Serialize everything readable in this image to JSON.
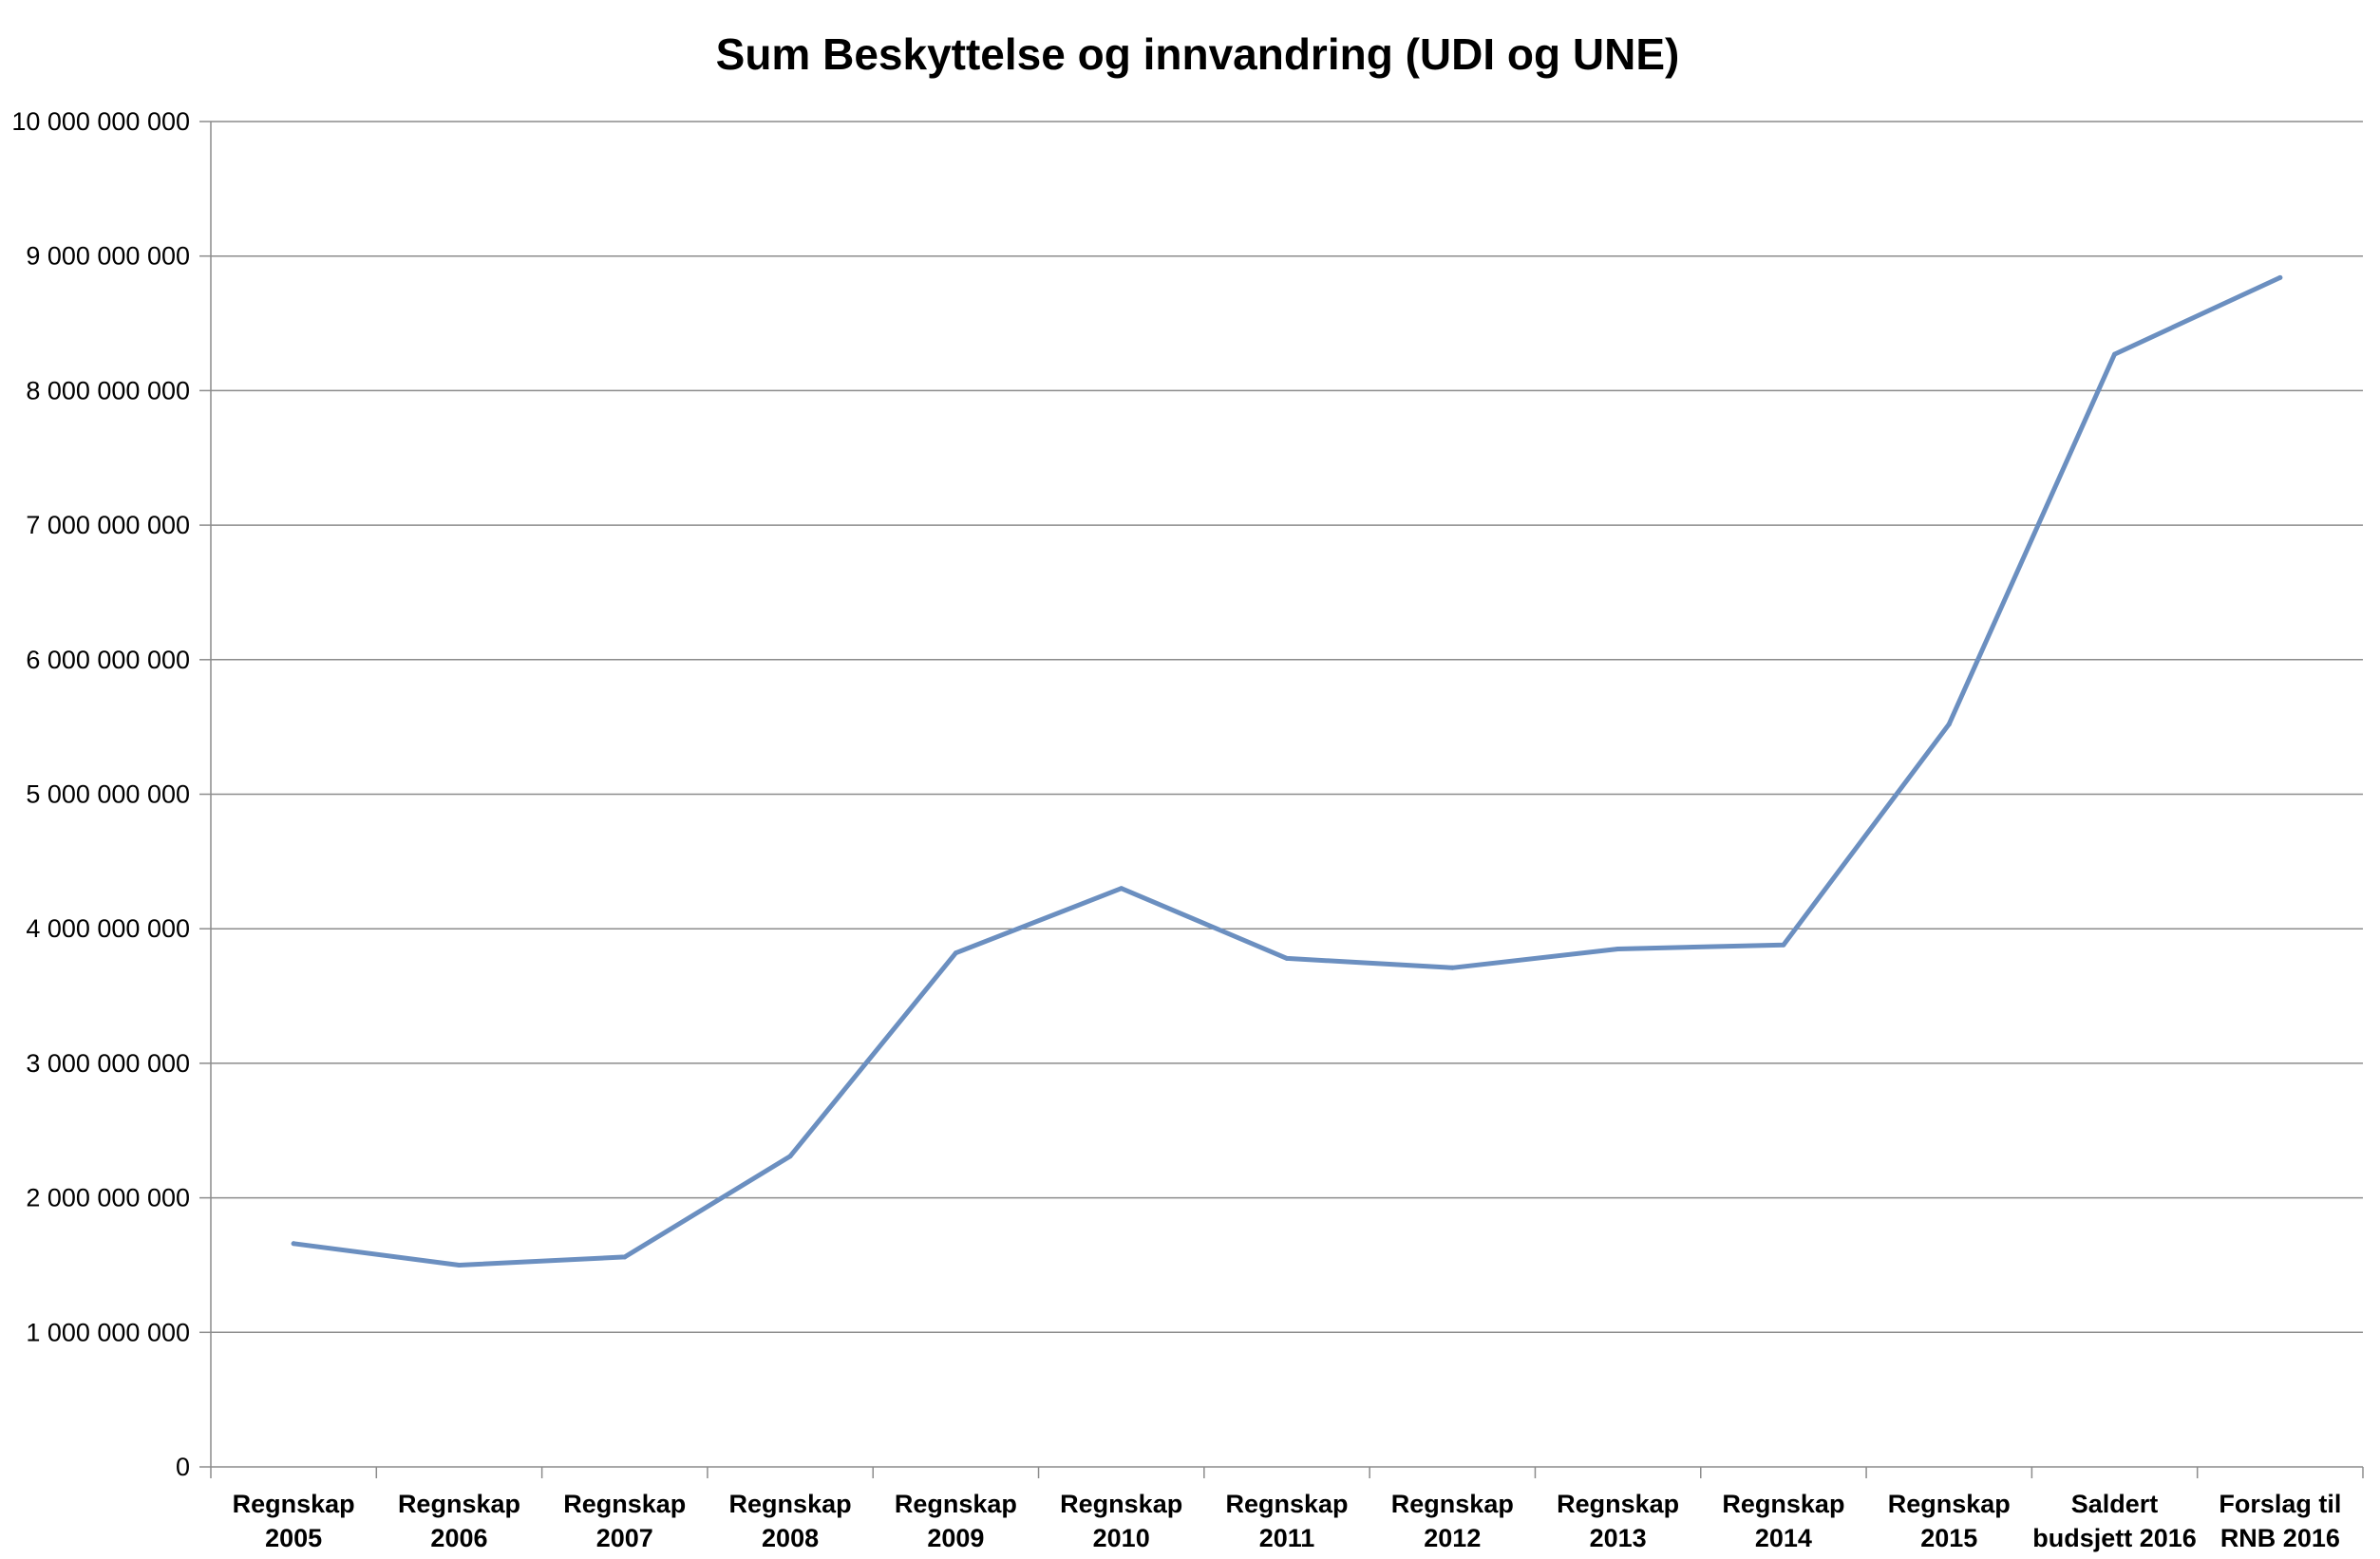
{
  "chart_data": {
    "type": "line",
    "title": "Sum Beskyttelse og innvandring (UDI og UNE)",
    "xlabel": "",
    "ylabel": "",
    "ylim": [
      0,
      10000000000
    ],
    "ytick_values": [
      0,
      1000000000,
      2000000000,
      3000000000,
      4000000000,
      5000000000,
      6000000000,
      7000000000,
      8000000000,
      9000000000,
      10000000000
    ],
    "ytick_labels": [
      "0",
      "1 000 000 000",
      "2 000 000 000",
      "3 000 000 000",
      "4 000 000 000",
      "5 000 000 000",
      "6 000 000 000",
      "7 000 000 000",
      "8 000 000 000",
      "9 000 000 000",
      "10 000 000 000"
    ],
    "categories": [
      [
        "Regnskap",
        "2005"
      ],
      [
        "Regnskap",
        "2006"
      ],
      [
        "Regnskap",
        "2007"
      ],
      [
        "Regnskap",
        "2008"
      ],
      [
        "Regnskap",
        "2009"
      ],
      [
        "Regnskap",
        "2010"
      ],
      [
        "Regnskap",
        "2011"
      ],
      [
        "Regnskap",
        "2012"
      ],
      [
        "Regnskap",
        "2013"
      ],
      [
        "Regnskap",
        "2014"
      ],
      [
        "Regnskap",
        "2015"
      ],
      [
        "Saldert",
        "budsjett 2016"
      ],
      [
        "Forslag til",
        "RNB 2016"
      ]
    ],
    "series": [
      {
        "color": "#6b8fc0",
        "values": [
          1660000000,
          1500000000,
          1560000000,
          2310000000,
          3820000000,
          4300000000,
          3780000000,
          3710000000,
          3850000000,
          3880000000,
          5520000000,
          8270000000,
          8840000000
        ]
      }
    ],
    "grid": true,
    "legend": "none"
  }
}
